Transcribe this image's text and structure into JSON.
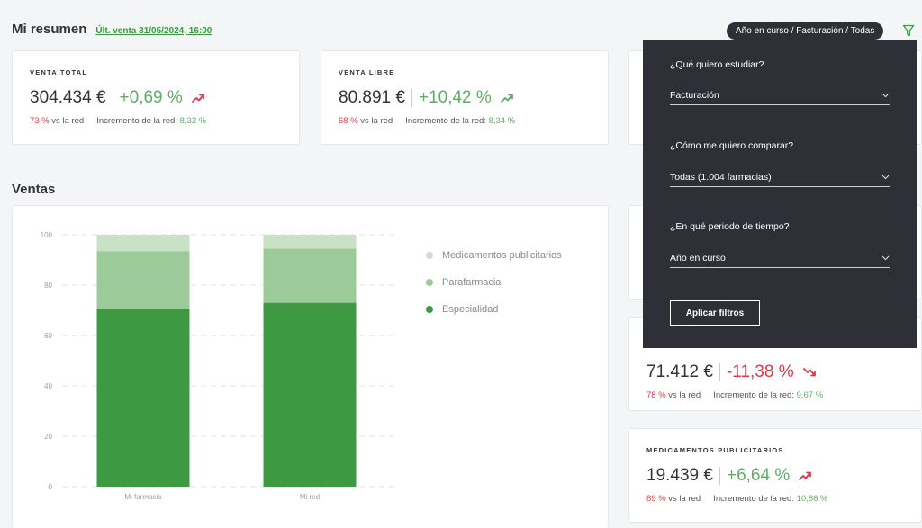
{
  "header": {
    "title": "Mi resumen",
    "last_sale": "Últ. venta 31/05/2024, 16:00",
    "filter_summary": "Año en curso / Facturación / Todas"
  },
  "kpis": [
    {
      "label": "VENTA TOTAL",
      "value": "304.434 €",
      "change": "+0,69 %",
      "trend": "up",
      "share": "73 %",
      "share_label": "vs la red",
      "net_label": "Incremento de la red:",
      "net_value": "8,32 %"
    },
    {
      "label": "VENTA LIBRE",
      "value": "80.891 €",
      "change": "+10,42 %",
      "trend": "up",
      "share": "68 %",
      "share_label": "vs la red",
      "net_label": "Incremento de la red:",
      "net_value": "8,34 %"
    },
    {
      "label": "",
      "value": "71.412 €",
      "change": "-11,38 %",
      "trend": "down",
      "share": "78 %",
      "share_label": "vs la red",
      "net_label": "Incremento de la red:",
      "net_value": "9,67 %"
    },
    {
      "label": "MEDICAMENTOS PUBLICITARIOS",
      "value": "19.439 €",
      "change": "+6,64 %",
      "trend": "up",
      "share": "89 %",
      "share_label": "vs la red",
      "net_label": "Incremento de la red:",
      "net_value": "10,86 %"
    }
  ],
  "sales": {
    "title": "Ventas"
  },
  "chart_data": {
    "type": "bar",
    "stacked": true,
    "categories": [
      "Mi farmacia",
      "Mi red"
    ],
    "series": [
      {
        "name": "Especialidad",
        "values": [
          70.5,
          73
        ],
        "color": "#3d9a43"
      },
      {
        "name": "Parafarmacia",
        "values": [
          23,
          21.5
        ],
        "color": "#9ccb99"
      },
      {
        "name": "Medicamentos publicitarios",
        "values": [
          6.5,
          5.5
        ],
        "color": "#c9e2c6"
      }
    ],
    "ylim": [
      0,
      100
    ],
    "yticks": [
      0,
      20,
      40,
      60,
      80,
      100
    ],
    "grid": true,
    "legend_position": "right"
  },
  "legend_order": [
    "Medicamentos publicitarios",
    "Parafarmacia",
    "Especialidad"
  ],
  "filters": {
    "study": {
      "question": "¿Qué quiero estudiar?",
      "value": "Facturación"
    },
    "compare": {
      "question": "¿Cómo me quiero comparar?",
      "value": "Todas (1.004 farmacias)"
    },
    "period": {
      "question": "¿En qué periodo de tiempo?",
      "value": "Año en curso"
    },
    "apply_label": "Aplicar filtros"
  },
  "colors": {
    "positive": "#5cae63",
    "negative": "#e0364a",
    "dropdown_bg": "#2f2f38",
    "accent": "#3a9a41"
  },
  "icons": {
    "filter": "filter-icon",
    "trend_up": "trend-up-icon",
    "trend_down": "trend-down-icon",
    "chevron": "chevron-down-icon"
  }
}
